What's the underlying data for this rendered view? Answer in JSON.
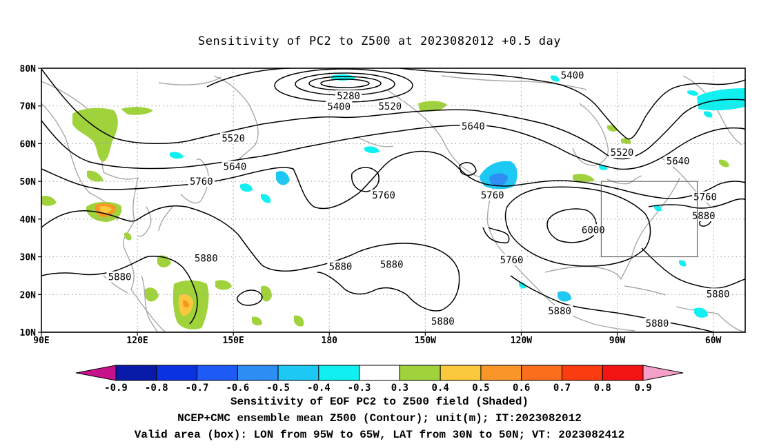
{
  "title": "Sensitivity of PC2 to Z500 at 2023082012 +0.5 day",
  "map": {
    "lon_range": [
      90,
      310
    ],
    "lat_range": [
      10,
      80
    ],
    "lat_ticks": [
      {
        "value": 80,
        "label": "80N"
      },
      {
        "value": 70,
        "label": "70N"
      },
      {
        "value": 60,
        "label": "60N"
      },
      {
        "value": 50,
        "label": "50N"
      },
      {
        "value": 40,
        "label": "40N"
      },
      {
        "value": 30,
        "label": "30N"
      },
      {
        "value": 20,
        "label": "20N"
      },
      {
        "value": 10,
        "label": "10N"
      }
    ],
    "lon_ticks": [
      {
        "value": 90,
        "label": "90E"
      },
      {
        "value": 120,
        "label": "120E"
      },
      {
        "value": 150,
        "label": "150E"
      },
      {
        "value": 180,
        "label": "180"
      },
      {
        "value": 210,
        "label": "150W"
      },
      {
        "value": 240,
        "label": "120W"
      },
      {
        "value": 270,
        "label": "90W"
      },
      {
        "value": 300,
        "label": "60W"
      }
    ],
    "grid": "dotted",
    "valid_box": {
      "lon": [
        265,
        295
      ],
      "lat": [
        30,
        50
      ]
    }
  },
  "contour_labels": [
    {
      "text": "5400",
      "lon": 256,
      "lat": 78
    },
    {
      "text": "5280",
      "lon": 186,
      "lat": 72.5
    },
    {
      "text": "5400",
      "lon": 183,
      "lat": 69.7
    },
    {
      "text": "5520",
      "lon": 199,
      "lat": 69.8
    },
    {
      "text": "5640",
      "lon": 225,
      "lat": 64.5
    },
    {
      "text": "5520",
      "lon": 150,
      "lat": 61.3
    },
    {
      "text": "5520",
      "lon": 271.5,
      "lat": 57.5
    },
    {
      "text": "5640",
      "lon": 150.5,
      "lat": 53.8
    },
    {
      "text": "5640",
      "lon": 289,
      "lat": 55.2
    },
    {
      "text": "5760",
      "lon": 140,
      "lat": 49.8
    },
    {
      "text": "5760",
      "lon": 197,
      "lat": 46.2
    },
    {
      "text": "5760",
      "lon": 231,
      "lat": 46.2
    },
    {
      "text": "5760",
      "lon": 297.5,
      "lat": 45.7
    },
    {
      "text": "5880",
      "lon": 297,
      "lat": 40.7
    },
    {
      "text": "6000",
      "lon": 262.5,
      "lat": 37
    },
    {
      "text": "5760",
      "lon": 237,
      "lat": 29
    },
    {
      "text": "5880",
      "lon": 141.5,
      "lat": 29.5
    },
    {
      "text": "5880",
      "lon": 114.5,
      "lat": 24.5
    },
    {
      "text": "5880",
      "lon": 183.5,
      "lat": 27.3
    },
    {
      "text": "5880",
      "lon": 199.5,
      "lat": 27.8
    },
    {
      "text": "5880",
      "lon": 215.5,
      "lat": 12.7
    },
    {
      "text": "5880",
      "lon": 252,
      "lat": 15.5
    },
    {
      "text": "5880",
      "lon": 301.5,
      "lat": 20
    },
    {
      "text": "5880",
      "lon": 282.5,
      "lat": 12.2
    }
  ],
  "colorbar": {
    "levels": [
      "-0.9",
      "-0.8",
      "-0.7",
      "-0.6",
      "-0.5",
      "-0.4",
      "-0.3",
      "0.3",
      "0.4",
      "0.5",
      "0.6",
      "0.7",
      "0.8",
      "0.9"
    ],
    "colors": [
      "#c8128c",
      "#0a1aa8",
      "#0a32e0",
      "#1e5af5",
      "#2e8cf5",
      "#1ec8f5",
      "#10f0f0",
      "#ffffff",
      "#a0d23c",
      "#fac83c",
      "#fa9628",
      "#fa6e1e",
      "#fa3c10",
      "#f51414",
      "#f5a0c8"
    ]
  },
  "captions": {
    "line1": "Sensitivity of EOF PC2 to Z500 field (Shaded)",
    "line2": "NCEP+CMC ensemble mean Z500 (Contour); unit(m); IT:2023082012",
    "line3": "Valid area (box): LON from 95W to 65W, LAT from 30N to 50N; VT: 2023082412"
  }
}
